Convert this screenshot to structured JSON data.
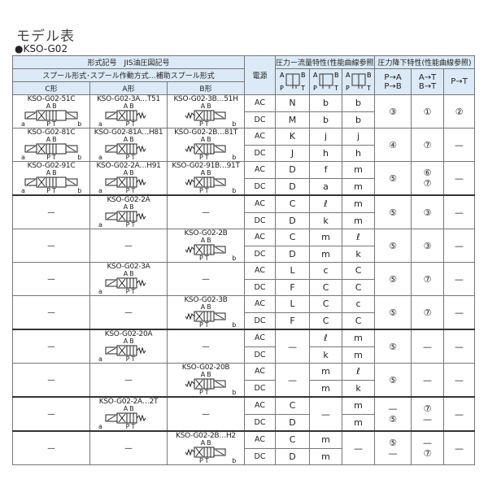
{
  "title": "モデル表",
  "subtitle": "●KSO-G02",
  "header": {
    "model_group": "形式記号　JIS油圧図記号",
    "spool_group": "スプール形式･スプール作動方式…補助スプール形式",
    "col_c": "C形",
    "col_a": "A形",
    "col_b": "B形",
    "power": "電源",
    "flow_group": "圧力ー流量特性(性能曲線参照)",
    "drop_group": "圧力降下特性(性能曲線参照)",
    "sym_ports": {
      "a": "A",
      "b": "B",
      "p": "P",
      "t": "T"
    },
    "drop_cols": [
      "P→A\nP→B",
      "A→T\nB→T",
      "P→T"
    ]
  },
  "power": [
    "AC",
    "DC"
  ],
  "groups": [
    {
      "models": [
        "KSO-G02-51C",
        "KSO-G02-3A…T51",
        "KSO-G02-3B…51H"
      ],
      "flow": [
        [
          "N",
          "M"
        ],
        [
          "b",
          "b"
        ],
        [
          "b",
          "b"
        ]
      ],
      "drop": [
        "③",
        "①",
        "②"
      ]
    },
    {
      "models": [
        "KSO-G02-81C",
        "KSO-G02-81A…H81",
        "KSO-G02-2B…81T"
      ],
      "flow": [
        [
          "K",
          "J"
        ],
        [
          "j",
          "h"
        ],
        [
          "j",
          "h"
        ]
      ],
      "drop": [
        "④",
        "⑦",
        "—"
      ]
    },
    {
      "models": [
        "KSO-G02-91C",
        "KSO-G02-2A…H91",
        "KSO-G02-91B…91T"
      ],
      "flow": [
        [
          "D",
          "D"
        ],
        [
          "f",
          "a"
        ],
        [
          "m",
          "m"
        ]
      ],
      "drop": [
        "⑤",
        [
          "⑥",
          "⑦"
        ],
        "—"
      ]
    },
    {
      "models": [
        "—",
        "KSO-G02-2A",
        "—"
      ],
      "flow": [
        [
          "C",
          "D"
        ],
        [
          "ℓ",
          "k"
        ],
        [
          "m",
          "m"
        ]
      ],
      "drop": [
        "⑤",
        "③",
        "—"
      ]
    },
    {
      "models": [
        "—",
        "—",
        "KSO-G02-2B"
      ],
      "flow": [
        [
          "C",
          "D"
        ],
        [
          "m",
          "m"
        ],
        [
          "ℓ",
          "k"
        ]
      ],
      "drop": [
        "⑤",
        "③",
        "—"
      ]
    },
    {
      "models": [
        "—",
        "KSO-G02-3A",
        "—"
      ],
      "flow": [
        [
          "L",
          "F"
        ],
        [
          "c",
          "C"
        ],
        [
          "C",
          "C"
        ]
      ],
      "drop": [
        "⑤",
        "⑦",
        "—"
      ]
    },
    {
      "models": [
        "—",
        "—",
        "KSO-G02-3B"
      ],
      "flow": [
        [
          "L",
          "F"
        ],
        [
          "C",
          "C"
        ],
        [
          "c",
          "C"
        ]
      ],
      "drop": [
        "⑤",
        "⑦",
        "—"
      ]
    },
    {
      "models": [
        "—",
        "KSO-G02-20A",
        "—"
      ],
      "flow": [
        "—",
        [
          "ℓ",
          "k"
        ],
        [
          "m",
          "m"
        ]
      ],
      "drop": [
        "⑤",
        "—",
        "—"
      ]
    },
    {
      "models": [
        "—",
        "—",
        "KSO-G02-20B"
      ],
      "flow": [
        "—",
        [
          "m",
          "m"
        ],
        [
          "ℓ",
          "k"
        ]
      ],
      "drop": [
        "⑤",
        "—",
        "—"
      ]
    },
    {
      "models": [
        "—",
        "KSO-G02-2A…2T",
        "—"
      ],
      "flow": [
        [
          "C",
          "D"
        ],
        "—",
        [
          "m",
          "m"
        ]
      ],
      "drop": [
        [
          "—",
          "⑤"
        ],
        [
          "⑦",
          "—"
        ],
        "—"
      ]
    },
    {
      "models": [
        "—",
        "—",
        "KSO-G02-2B…H2"
      ],
      "flow": [
        [
          "C",
          "D"
        ],
        [
          "m",
          "m"
        ],
        "—"
      ],
      "drop": [
        [
          "⑤",
          "—"
        ],
        [
          "—",
          "⑦"
        ],
        "—"
      ]
    }
  ],
  "symbol_labels": {
    "top": "A B",
    "bottom": "P T",
    "left": "a",
    "right": "b"
  }
}
